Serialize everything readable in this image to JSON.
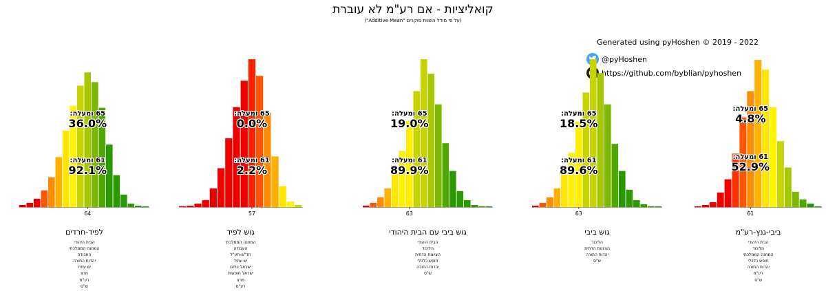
{
  "header": {
    "title": "קואליציות - אם רע\"מ לא עוברת",
    "subtitle": "(על פי מודל השוות סוקרים \"Additive Mean\")"
  },
  "credits": {
    "generated": "Generated using pyHoshen © 2019 - 2022",
    "twitter": "@pyHoshen",
    "github": "https://github.com/byblian/pyhoshen"
  },
  "chart_data": [
    {
      "type": "bar",
      "title": "לפיד-חרדים",
      "tick": "64",
      "above65_label": "65 ומעלה:",
      "above65_value": "36.0%",
      "above61_label": "61 ומעלה:",
      "above61_value": "92.1%",
      "parties": [
        "הבית היהודי",
        "המחנה הממלכתי",
        "העבודה",
        "יהדות התורה",
        "יש עתיד",
        "מרצ",
        "רע\"מ",
        "ש\"ס"
      ],
      "values": [
        0.3,
        0.6,
        1.2,
        2.4,
        4.3,
        7.2,
        11.0,
        14.6,
        17.5,
        19.4,
        18.0,
        14.3,
        9.0,
        4.6,
        1.8,
        0.5,
        0.2,
        0.1
      ],
      "colors": [
        "#ee0000",
        "#ee0000",
        "#ee0000",
        "#ff5500",
        "#ff8c00",
        "#ffb000",
        "#ffe500",
        "#fff300",
        "#c8d400",
        "#a6c800",
        "#7bb800",
        "#4fa800",
        "#2a9a00",
        "#2a9a00",
        "#2a9a00",
        "#2a9a00",
        "#2a9a00",
        "#2a9a00"
      ]
    },
    {
      "type": "bar",
      "title": "גוש לפיד",
      "tick": "57",
      "above65_label": "65 ומעלה:",
      "above65_value": "0.0%",
      "above61_label": "61 ומעלה:",
      "above61_value": "2.2%",
      "parties": [
        "המחנה הממלכתי",
        "העבודה",
        "חד\"ש-תע\"ל",
        "יש עתיד",
        "ישראל ביתנו",
        "ישראל חופשית",
        "מרצ",
        "רע\"מ"
      ],
      "values": [
        0.1,
        0.2,
        0.5,
        1.0,
        2.7,
        5.6,
        9.9,
        14.4,
        18.2,
        21.3,
        18.9,
        13.6,
        7.3,
        3.0,
        0.8,
        0.3
      ],
      "colors": [
        "#ee0000",
        "#ee0000",
        "#ee0000",
        "#ee0000",
        "#ee0000",
        "#ee0000",
        "#ee0000",
        "#ee0000",
        "#ee0000",
        "#ff2000",
        "#ff5500",
        "#ff8c00",
        "#ffb000",
        "#ffe500",
        "#fff300",
        "#c8d400"
      ]
    },
    {
      "type": "bar",
      "title": "גוש ביבי עם הבית היהודי",
      "tick": "63",
      "above65_label": "65 ומעלה:",
      "above65_value": "19.0%",
      "above61_label": "61 ומעלה:",
      "above61_value": "89.9%",
      "parties": [
        "הבית היהודי",
        "הליכוד",
        "הציונות הדתית",
        "חופש כלכלי",
        "יהדות התורה",
        "ש\"ס"
      ],
      "values": [
        0.2,
        0.6,
        1.4,
        2.7,
        4.9,
        8.1,
        12.4,
        16.7,
        21.3,
        19.2,
        14.8,
        9.2,
        5.2,
        2.3,
        1.0,
        0.3,
        0.1,
        0.1
      ],
      "colors": [
        "#ee0000",
        "#ff5500",
        "#ff8c00",
        "#ffb000",
        "#ffe500",
        "#fff300",
        "#ffee00",
        "#c8d400",
        "#c8d400",
        "#a6c800",
        "#7bb800",
        "#4fa800",
        "#2a9a00",
        "#2a9a00",
        "#2a9a00",
        "#2a9a00",
        "#2a9a00",
        "#2a9a00"
      ]
    },
    {
      "type": "bar",
      "title": "גוש ביבי",
      "tick": "63",
      "above65_label": "65 ומעלה:",
      "above65_value": "18.5%",
      "above61_label": "61 ומעלה:",
      "above61_value": "89.6%",
      "parties": [
        "הליכוד",
        "הציונות הדתית",
        "יהדות התורה",
        "ש\"ס"
      ],
      "values": [
        0.2,
        0.6,
        1.4,
        2.7,
        4.7,
        7.8,
        12.3,
        16.5,
        21.3,
        19.3,
        14.8,
        9.1,
        5.2,
        2.5,
        1.0,
        0.4,
        0.1,
        0.1
      ],
      "colors": [
        "#ee0000",
        "#ff5500",
        "#ff8c00",
        "#ffb000",
        "#ffe500",
        "#fff300",
        "#ffee00",
        "#c8d400",
        "#c8d400",
        "#a6c800",
        "#7bb800",
        "#4fa800",
        "#2a9a00",
        "#2a9a00",
        "#2a9a00",
        "#2a9a00",
        "#2a9a00",
        "#2a9a00"
      ]
    },
    {
      "type": "bar",
      "title": "ביבי-גנץ-רע\"מ",
      "tick": "61",
      "above65_label": "65 ומעלה:",
      "above65_value": "4.8%",
      "above61_label": "61 ומעלה:",
      "above61_value": "52.9%",
      "parties": [
        "הבית היהודי",
        "הליכוד",
        "המחנה הממלכתי",
        "חופש כלכלי",
        "יהדות התורה",
        "רע\"מ",
        "ש\"ס"
      ],
      "values": [
        0.1,
        0.3,
        0.7,
        2.1,
        4.0,
        7.7,
        12.9,
        16.7,
        21.2,
        19.8,
        14.4,
        9.5,
        5.7,
        2.2,
        1.1,
        0.5,
        0.1
      ],
      "colors": [
        "#ee0000",
        "#ee0000",
        "#ee0000",
        "#ee0000",
        "#ee0000",
        "#ff3000",
        "#ff5500",
        "#ff8c00",
        "#ffb000",
        "#ffe500",
        "#fff300",
        "#c8d400",
        "#a6c800",
        "#7bb800",
        "#4fa800",
        "#2a9a00",
        "#2a9a00"
      ]
    }
  ]
}
